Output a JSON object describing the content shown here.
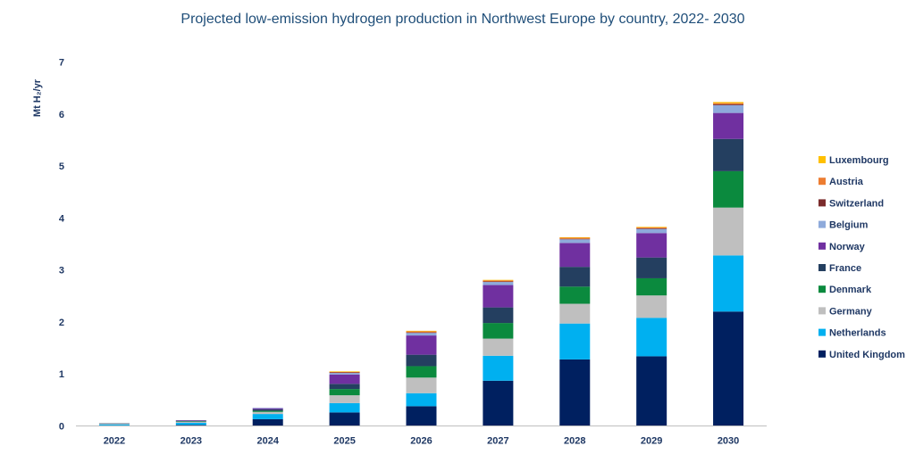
{
  "chart_data": {
    "type": "bar",
    "stacked": true,
    "title": "Projected low-emission hydrogen production in Northwest Europe by country, 2022- 2030",
    "ylabel": "Mt H₂/yr",
    "xlabel": "",
    "ylim": [
      0,
      7
    ],
    "yticks": [
      0,
      1,
      2,
      3,
      4,
      5,
      6,
      7
    ],
    "categories": [
      "2022",
      "2023",
      "2024",
      "2025",
      "2026",
      "2027",
      "2028",
      "2029",
      "2030"
    ],
    "legend_position": "right",
    "series": [
      {
        "name": "United Kingdom",
        "color": "#002060",
        "values": [
          0.01,
          0.02,
          0.13,
          0.26,
          0.38,
          0.87,
          1.28,
          1.34,
          2.2
        ]
      },
      {
        "name": "Netherlands",
        "color": "#00b0f0",
        "values": [
          0.02,
          0.04,
          0.1,
          0.18,
          0.25,
          0.48,
          0.69,
          0.74,
          1.08
        ]
      },
      {
        "name": "Germany",
        "color": "#bfbfbf",
        "values": [
          0.01,
          0.02,
          0.04,
          0.15,
          0.3,
          0.33,
          0.38,
          0.43,
          0.92
        ]
      },
      {
        "name": "Denmark",
        "color": "#0b8a3e",
        "values": [
          0.0,
          0.01,
          0.02,
          0.12,
          0.22,
          0.3,
          0.33,
          0.33,
          0.7
        ]
      },
      {
        "name": "France",
        "color": "#243f60",
        "values": [
          0.01,
          0.01,
          0.03,
          0.1,
          0.22,
          0.3,
          0.38,
          0.4,
          0.62
        ]
      },
      {
        "name": "Norway",
        "color": "#7030a0",
        "values": [
          0.0,
          0.01,
          0.02,
          0.18,
          0.37,
          0.43,
          0.46,
          0.47,
          0.5
        ]
      },
      {
        "name": "Belgium",
        "color": "#8eaadb",
        "values": [
          0.0,
          0.0,
          0.01,
          0.03,
          0.05,
          0.06,
          0.07,
          0.08,
          0.15
        ]
      },
      {
        "name": "Switzerland",
        "color": "#7b2c2c",
        "values": [
          0.0,
          0.0,
          0.0,
          0.01,
          0.01,
          0.01,
          0.01,
          0.01,
          0.02
        ]
      },
      {
        "name": "Austria",
        "color": "#ed7d31",
        "values": [
          0.0,
          0.0,
          0.0,
          0.01,
          0.02,
          0.02,
          0.02,
          0.02,
          0.02
        ]
      },
      {
        "name": "Luxembourg",
        "color": "#ffc000",
        "values": [
          0.0,
          0.0,
          0.0,
          0.01,
          0.01,
          0.01,
          0.01,
          0.01,
          0.02
        ]
      }
    ]
  }
}
